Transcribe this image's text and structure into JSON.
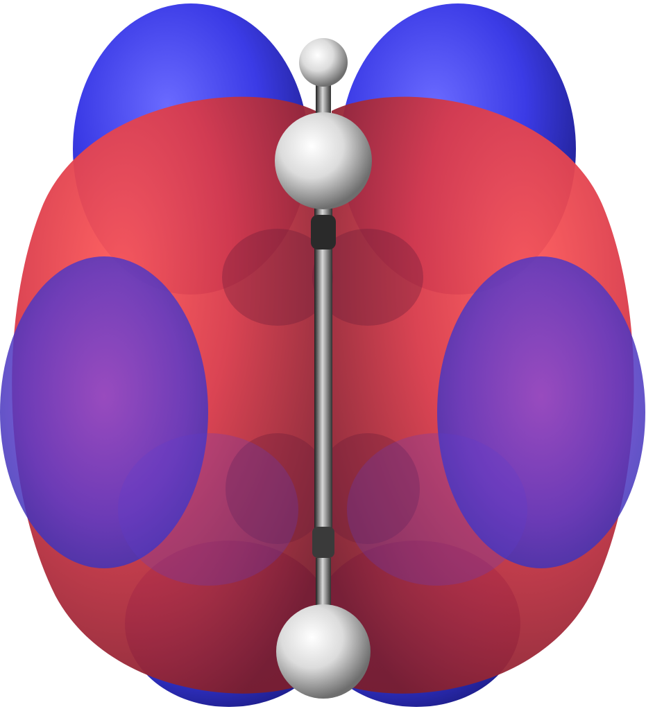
{
  "scene": {
    "kind": "molecular-orbital-isosurface",
    "background": "#ffffff",
    "colors": {
      "positive_lobe": "#e8404a",
      "negative_lobe": "#3a3ae0",
      "hydrogen_atom": "#ffffff",
      "carbon_bond": "#3a3a3a"
    },
    "atoms": [
      {
        "element": "H",
        "id": "hydrogen-top-back"
      },
      {
        "element": "H",
        "id": "hydrogen-top-front"
      },
      {
        "element": "H",
        "id": "hydrogen-bottom"
      }
    ],
    "lobes": [
      {
        "phase": "negative",
        "id": "blue-lobe-top-left"
      },
      {
        "phase": "negative",
        "id": "blue-lobe-top-right"
      },
      {
        "phase": "positive",
        "id": "red-lobe-left"
      },
      {
        "phase": "positive",
        "id": "red-lobe-right"
      },
      {
        "phase": "negative",
        "id": "blue-lobe-mid-left"
      },
      {
        "phase": "negative",
        "id": "blue-lobe-mid-right"
      },
      {
        "phase": "negative",
        "id": "blue-lobe-bottom-left"
      },
      {
        "phase": "negative",
        "id": "blue-lobe-bottom-right"
      }
    ]
  }
}
